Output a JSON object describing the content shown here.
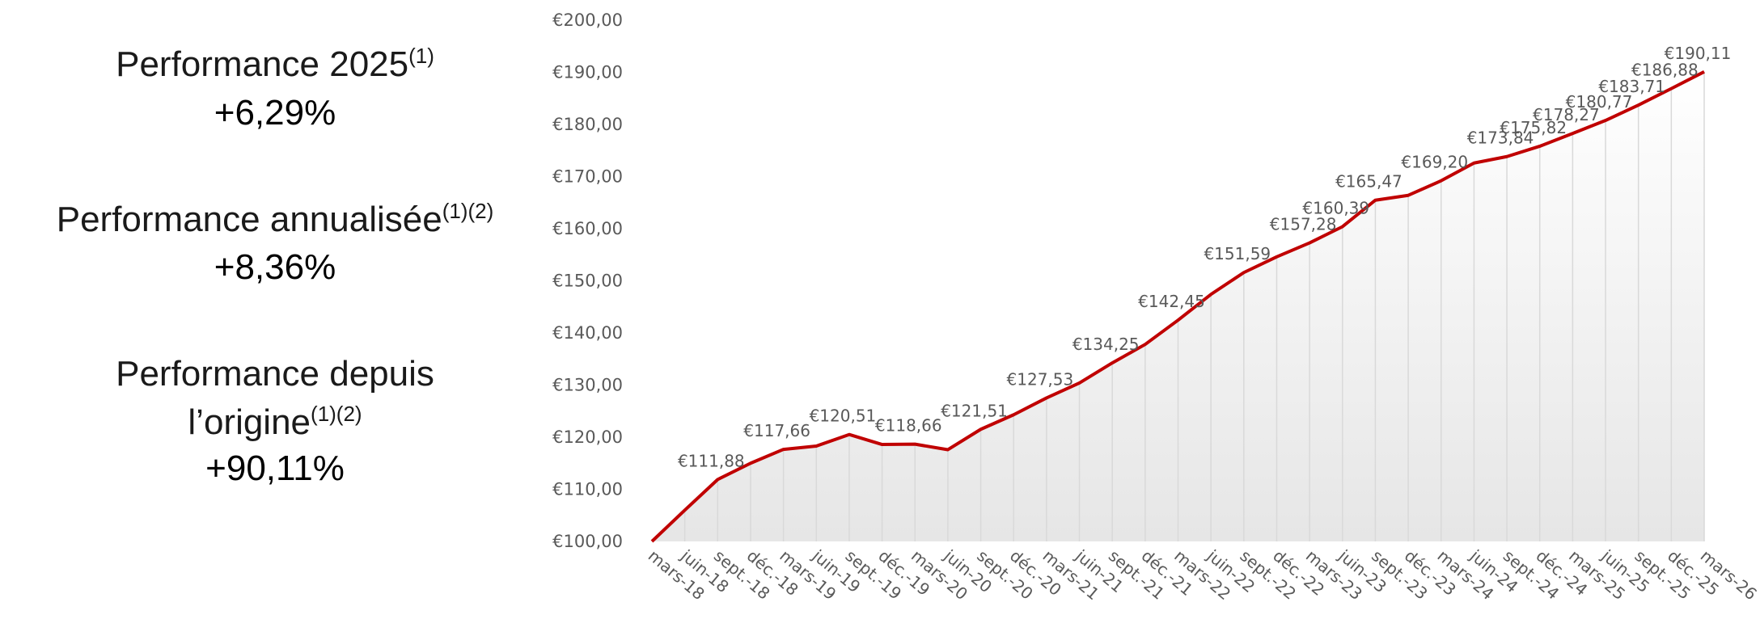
{
  "summary": [
    {
      "label": "Performance 2025",
      "note": "(1)",
      "value": "+6,29%"
    },
    {
      "label": "Performance annualisée",
      "note": "(1)(2)",
      "value": "+8,36%"
    },
    {
      "label_lines": [
        "Performance depuis",
        "l’origine"
      ],
      "note": "(1)(2)",
      "value": "+90,11%"
    }
  ],
  "chart_data": {
    "type": "line",
    "area_fill": true,
    "color": "#c00000",
    "drop_lines": true,
    "categories": [
      "mars-18",
      "juin-18",
      "sept.-18",
      "déc.-18",
      "mars-19",
      "juin-19",
      "sept.-19",
      "déc.-19",
      "mars-20",
      "juin-20",
      "sept.-20",
      "déc.-20",
      "mars-21",
      "juin-21",
      "sept.-21",
      "déc.-21",
      "mars-22",
      "juin-22",
      "sept.-22",
      "déc.-22",
      "mars-23",
      "juin-23",
      "sept.-23",
      "déc.-23",
      "mars-24",
      "juin-24",
      "sept.-24",
      "déc.-24",
      "mars-25",
      "juin-25",
      "sept.-25",
      "déc.-25",
      "mars-26"
    ],
    "values": [
      100,
      106,
      111.88,
      115,
      117.66,
      118.3,
      120.51,
      118.6,
      118.66,
      117.6,
      121.51,
      124.3,
      127.53,
      130.4,
      134.25,
      137.8,
      142.45,
      147.4,
      151.59,
      154.6,
      157.28,
      160.39,
      165.47,
      166.4,
      169.2,
      172.6,
      173.84,
      175.82,
      178.27,
      180.77,
      183.71,
      186.88,
      190.11
    ],
    "value_labels": [
      null,
      null,
      "€111,88",
      null,
      "€117,66",
      null,
      "€120,51",
      null,
      "€118,66",
      null,
      "€121,51",
      null,
      "€127,53",
      null,
      "€134,25",
      null,
      "€142,45",
      null,
      "€151,59",
      null,
      "€157,28",
      "€160,39",
      "€165,47",
      null,
      "€169,20",
      null,
      "€173,84",
      "€175,82",
      "€178,27",
      "€180,77",
      "€183,71",
      "€186,88",
      "€190,11"
    ],
    "ylim": [
      100,
      200
    ],
    "yticks": [
      {
        "value": 100,
        "label": "€100,00"
      },
      {
        "value": 110,
        "label": "€110,00"
      },
      {
        "value": 120,
        "label": "€120,00"
      },
      {
        "value": 130,
        "label": "€130,00"
      },
      {
        "value": 140,
        "label": "€140,00"
      },
      {
        "value": 150,
        "label": "€150,00"
      },
      {
        "value": 160,
        "label": "€160,00"
      },
      {
        "value": 170,
        "label": "€170,00"
      },
      {
        "value": 180,
        "label": "€180,00"
      },
      {
        "value": 190,
        "label": "€190,00"
      },
      {
        "value": 200,
        "label": "€200,00"
      }
    ]
  }
}
